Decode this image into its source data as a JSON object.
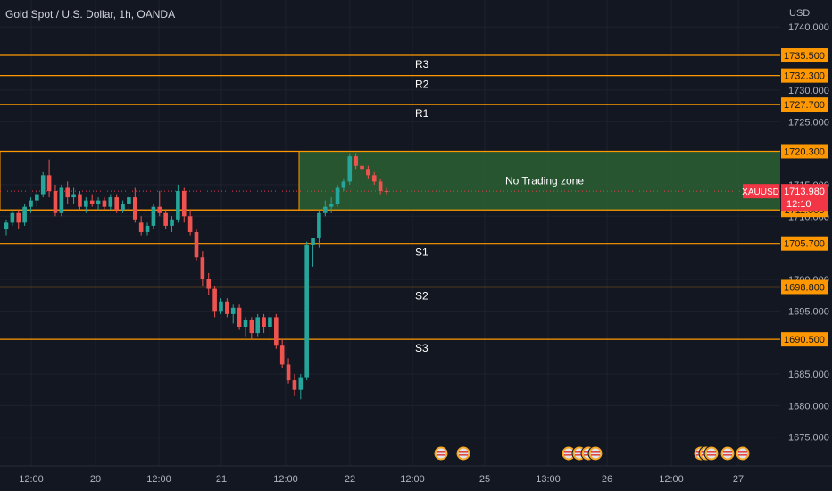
{
  "header": {
    "title": "Gold Spot / U.S. Dollar, 1h, OANDA"
  },
  "axis": {
    "currency": "USD",
    "y_ticks": [
      "1740.000",
      "1730.000",
      "1725.000",
      "1715.000",
      "1710.000",
      "1700.000",
      "1695.000",
      "1685.000",
      "1680.000",
      "1675.000"
    ],
    "x_ticks": [
      "12:00",
      "20",
      "12:00",
      "21",
      "12:00",
      "22",
      "12:00",
      "25",
      "13:00",
      "26",
      "12:00",
      "27"
    ]
  },
  "colors": {
    "background": "#131722",
    "level_line": "#ff9800",
    "zone_fill": "#2e6b35",
    "candle_up": "#26a69a",
    "candle_down": "#ef5350",
    "price_tag": "#f23645",
    "axis_text": "#b2b5be"
  },
  "chart_data": {
    "type": "candlestick",
    "title": "Gold Spot / U.S. Dollar, 1h, OANDA",
    "ylim": [
      1671,
      1743
    ],
    "levels": [
      {
        "label": "R3",
        "value": 1735.5,
        "tag": "1735.500"
      },
      {
        "label": "R2",
        "value": 1732.3,
        "tag": "1732.300"
      },
      {
        "label": "R1",
        "value": 1727.7,
        "tag": "1727.700"
      },
      {
        "label": "",
        "value": 1720.3,
        "tag": "1720.300"
      },
      {
        "label": "",
        "value": 1711.0,
        "tag": "1711.000"
      },
      {
        "label": "S1",
        "value": 1705.7,
        "tag": "1705.700"
      },
      {
        "label": "S2",
        "value": 1698.8,
        "tag": "1698.800"
      },
      {
        "label": "S3",
        "value": 1690.5,
        "tag": "1690.500"
      }
    ],
    "zone": {
      "label": "No Trading zone",
      "top": 1720.3,
      "bottom": 1711.0
    },
    "current_price": {
      "symbol": "XAUUSD",
      "value": "1713.980",
      "countdown": "12:10",
      "level": 1713.98
    },
    "candles": [
      [
        1708,
        1709.5,
        1707,
        1709
      ],
      [
        1709,
        1711,
        1708.5,
        1710.5
      ],
      [
        1710.5,
        1711,
        1708,
        1709
      ],
      [
        1709,
        1712,
        1708.5,
        1711.5
      ],
      [
        1711.5,
        1713,
        1710.5,
        1712.5
      ],
      [
        1712.5,
        1714,
        1711.5,
        1713.5
      ],
      [
        1713.5,
        1717,
        1713,
        1716.5
      ],
      [
        1716.5,
        1719,
        1713,
        1714
      ],
      [
        1714,
        1715,
        1710,
        1710.5
      ],
      [
        1710.5,
        1715,
        1710,
        1714.5
      ],
      [
        1714.5,
        1715.5,
        1712,
        1713
      ],
      [
        1713,
        1714.5,
        1712,
        1713.5
      ],
      [
        1713.5,
        1714,
        1711,
        1711.5
      ],
      [
        1711.5,
        1713,
        1710.5,
        1712.5
      ],
      [
        1712.5,
        1713.5,
        1711.5,
        1712
      ],
      [
        1712,
        1713,
        1711,
        1712.5
      ],
      [
        1712.5,
        1713,
        1711,
        1711.5
      ],
      [
        1711.5,
        1713.5,
        1711,
        1713
      ],
      [
        1713,
        1713.5,
        1710.5,
        1711
      ],
      [
        1711,
        1712.5,
        1710.5,
        1712
      ],
      [
        1712,
        1713.5,
        1711,
        1713
      ],
      [
        1713,
        1714.5,
        1709,
        1709.5
      ],
      [
        1709,
        1710,
        1707,
        1707.5
      ],
      [
        1707.5,
        1709,
        1707,
        1708.5
      ],
      [
        1708.5,
        1712,
        1708,
        1711.5
      ],
      [
        1711.5,
        1714,
        1710,
        1710.5
      ],
      [
        1710.5,
        1711,
        1708,
        1708.5
      ],
      [
        1708.5,
        1710,
        1707.5,
        1709.5
      ],
      [
        1709.5,
        1715,
        1709,
        1714
      ],
      [
        1714,
        1714.5,
        1709,
        1710
      ],
      [
        1710,
        1711,
        1707,
        1707.5
      ],
      [
        1707.5,
        1708,
        1703,
        1703.5
      ],
      [
        1703.5,
        1704.5,
        1699,
        1700
      ],
      [
        1700,
        1701,
        1697.5,
        1698.5
      ],
      [
        1698.5,
        1699,
        1694,
        1695
      ],
      [
        1695,
        1697,
        1694.5,
        1696.5
      ],
      [
        1696.5,
        1697,
        1694,
        1694.5
      ],
      [
        1694.5,
        1696,
        1693,
        1695.5
      ],
      [
        1695.5,
        1696,
        1692,
        1692.5
      ],
      [
        1692.5,
        1694,
        1691,
        1693.5
      ],
      [
        1693.5,
        1694,
        1690.5,
        1691.5
      ],
      [
        1691.5,
        1694.5,
        1691,
        1694
      ],
      [
        1694,
        1694.5,
        1691.5,
        1692.5
      ],
      [
        1692.5,
        1694.5,
        1690,
        1694
      ],
      [
        1694,
        1694.5,
        1689,
        1689.5
      ],
      [
        1689.5,
        1690.5,
        1686,
        1686.5
      ],
      [
        1686.5,
        1687.5,
        1683.5,
        1684
      ],
      [
        1684,
        1685,
        1681.5,
        1682.5
      ],
      [
        1682.5,
        1685,
        1681,
        1684.5
      ],
      [
        1684.5,
        1706,
        1684,
        1705.5
      ],
      [
        1705.5,
        1706.5,
        1702,
        1706.5
      ],
      [
        1706.5,
        1711,
        1705,
        1710.5
      ],
      [
        1710.5,
        1712.5,
        1710,
        1711.5
      ],
      [
        1711.5,
        1713,
        1710.5,
        1712
      ],
      [
        1712,
        1715,
        1711.5,
        1714.5
      ],
      [
        1714.5,
        1716,
        1714,
        1715.5
      ],
      [
        1715.5,
        1720,
        1715,
        1719.5
      ],
      [
        1719.5,
        1720,
        1717.5,
        1718
      ],
      [
        1718,
        1718.5,
        1717,
        1717.5
      ],
      [
        1717.5,
        1718,
        1716,
        1716.5
      ],
      [
        1716.5,
        1717,
        1715,
        1715.5
      ],
      [
        1715.5,
        1716,
        1713.5,
        1714
      ],
      [
        1714,
        1714.5,
        1713.5,
        1713.98
      ]
    ]
  }
}
